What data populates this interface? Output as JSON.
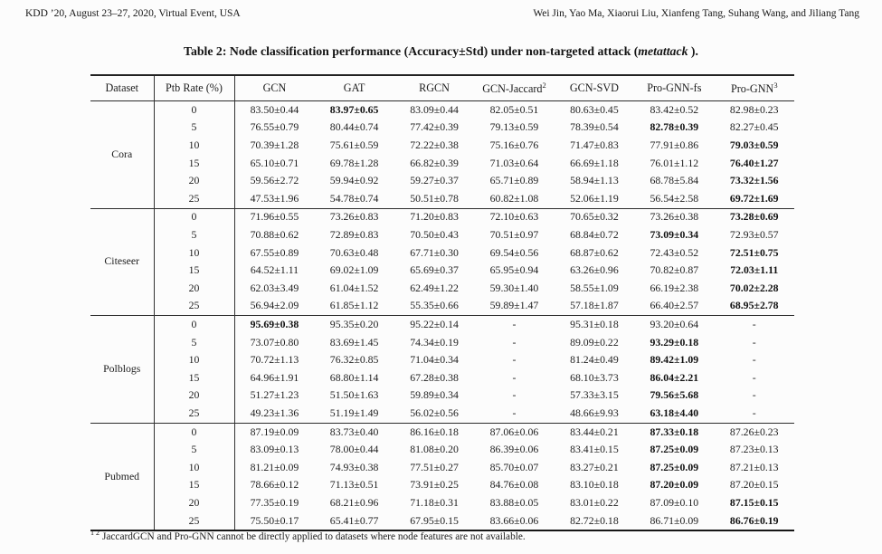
{
  "page_header": {
    "left": "KDD ’20, August 23–27, 2020, Virtual Event, USA",
    "right": "Wei Jin, Yao Ma, Xiaorui Liu, Xianfeng Tang, Suhang Wang, and Jiliang Tang"
  },
  "table": {
    "title_prefix": "Table 2: Node classification performance (Accuracy±Std) under non-targeted attack (",
    "title_emph": "metattack",
    "title_suffix": " ).",
    "columns": [
      {
        "label": "Dataset",
        "sup": ""
      },
      {
        "label": "Ptb Rate (%)",
        "sup": ""
      },
      {
        "label": "GCN",
        "sup": ""
      },
      {
        "label": "GAT",
        "sup": ""
      },
      {
        "label": "RGCN",
        "sup": ""
      },
      {
        "label": "GCN-Jaccard",
        "sup": "2"
      },
      {
        "label": "GCN-SVD",
        "sup": ""
      },
      {
        "label": "Pro-GNN-fs",
        "sup": ""
      },
      {
        "label": "Pro-GNN",
        "sup": "3"
      }
    ],
    "sections": [
      {
        "dataset": "Cora",
        "rows": [
          {
            "ptb": "0",
            "bold": 1,
            "values": [
              "83.50±0.44",
              "83.97±0.65",
              "83.09±0.44",
              "82.05±0.51",
              "80.63±0.45",
              "83.42±0.52",
              "82.98±0.23"
            ]
          },
          {
            "ptb": "5",
            "bold": 5,
            "values": [
              "76.55±0.79",
              "80.44±0.74",
              "77.42±0.39",
              "79.13±0.59",
              "78.39±0.54",
              "82.78±0.39",
              "82.27±0.45"
            ]
          },
          {
            "ptb": "10",
            "bold": 6,
            "values": [
              "70.39±1.28",
              "75.61±0.59",
              "72.22±0.38",
              "75.16±0.76",
              "71.47±0.83",
              "77.91±0.86",
              "79.03±0.59"
            ]
          },
          {
            "ptb": "15",
            "bold": 6,
            "values": [
              "65.10±0.71",
              "69.78±1.28",
              "66.82±0.39",
              "71.03±0.64",
              "66.69±1.18",
              "76.01±1.12",
              "76.40±1.27"
            ]
          },
          {
            "ptb": "20",
            "bold": 6,
            "values": [
              "59.56±2.72",
              "59.94±0.92",
              "59.27±0.37",
              "65.71±0.89",
              "58.94±1.13",
              "68.78±5.84",
              "73.32±1.56"
            ]
          },
          {
            "ptb": "25",
            "bold": 6,
            "values": [
              "47.53±1.96",
              "54.78±0.74",
              "50.51±0.78",
              "60.82±1.08",
              "52.06±1.19",
              "56.54±2.58",
              "69.72±1.69"
            ]
          }
        ]
      },
      {
        "dataset": "Citeseer",
        "rows": [
          {
            "ptb": "0",
            "bold": 6,
            "values": [
              "71.96±0.55",
              "73.26±0.83",
              "71.20±0.83",
              "72.10±0.63",
              "70.65±0.32",
              "73.26±0.38",
              "73.28±0.69"
            ]
          },
          {
            "ptb": "5",
            "bold": 5,
            "values": [
              "70.88±0.62",
              "72.89±0.83",
              "70.50±0.43",
              "70.51±0.97",
              "68.84±0.72",
              "73.09±0.34",
              "72.93±0.57"
            ]
          },
          {
            "ptb": "10",
            "bold": 6,
            "values": [
              "67.55±0.89",
              "70.63±0.48",
              "67.71±0.30",
              "69.54±0.56",
              "68.87±0.62",
              "72.43±0.52",
              "72.51±0.75"
            ]
          },
          {
            "ptb": "15",
            "bold": 6,
            "values": [
              "64.52±1.11",
              "69.02±1.09",
              "65.69±0.37",
              "65.95±0.94",
              "63.26±0.96",
              "70.82±0.87",
              "72.03±1.11"
            ]
          },
          {
            "ptb": "20",
            "bold": 6,
            "values": [
              "62.03±3.49",
              "61.04±1.52",
              "62.49±1.22",
              "59.30±1.40",
              "58.55±1.09",
              "66.19±2.38",
              "70.02±2.28"
            ]
          },
          {
            "ptb": "25",
            "bold": 6,
            "values": [
              "56.94±2.09",
              "61.85±1.12",
              "55.35±0.66",
              "59.89±1.47",
              "57.18±1.87",
              "66.40±2.57",
              "68.95±2.78"
            ]
          }
        ]
      },
      {
        "dataset": "Polblogs",
        "rows": [
          {
            "ptb": "0",
            "bold": 0,
            "values": [
              "95.69±0.38",
              "95.35±0.20",
              "95.22±0.14",
              "-",
              "95.31±0.18",
              "93.20±0.64",
              "-"
            ]
          },
          {
            "ptb": "5",
            "bold": 5,
            "values": [
              "73.07±0.80",
              "83.69±1.45",
              "74.34±0.19",
              "-",
              "89.09±0.22",
              "93.29±0.18",
              "-"
            ]
          },
          {
            "ptb": "10",
            "bold": 5,
            "values": [
              "70.72±1.13",
              "76.32±0.85",
              "71.04±0.34",
              "-",
              "81.24±0.49",
              "89.42±1.09",
              "-"
            ]
          },
          {
            "ptb": "15",
            "bold": 5,
            "values": [
              "64.96±1.91",
              "68.80±1.14",
              "67.28±0.38",
              "-",
              "68.10±3.73",
              "86.04±2.21",
              "-"
            ]
          },
          {
            "ptb": "20",
            "bold": 5,
            "values": [
              "51.27±1.23",
              "51.50±1.63",
              "59.89±0.34",
              "-",
              "57.33±3.15",
              "79.56±5.68",
              "-"
            ]
          },
          {
            "ptb": "25",
            "bold": 5,
            "values": [
              "49.23±1.36",
              "51.19±1.49",
              "56.02±0.56",
              "-",
              "48.66±9.93",
              "63.18±4.40",
              "-"
            ]
          }
        ]
      },
      {
        "dataset": "Pubmed",
        "rows": [
          {
            "ptb": "0",
            "bold": 5,
            "values": [
              "87.19±0.09",
              "83.73±0.40",
              "86.16±0.18",
              "87.06±0.06",
              "83.44±0.21",
              "87.33±0.18",
              "87.26±0.23"
            ]
          },
          {
            "ptb": "5",
            "bold": 5,
            "values": [
              "83.09±0.13",
              "78.00±0.44",
              "81.08±0.20",
              "86.39±0.06",
              "83.41±0.15",
              "87.25±0.09",
              "87.23±0.13"
            ]
          },
          {
            "ptb": "10",
            "bold": 5,
            "values": [
              "81.21±0.09",
              "74.93±0.38",
              "77.51±0.27",
              "85.70±0.07",
              "83.27±0.21",
              "87.25±0.09",
              "87.21±0.13"
            ]
          },
          {
            "ptb": "15",
            "bold": 5,
            "values": [
              "78.66±0.12",
              "71.13±0.51",
              "73.91±0.25",
              "84.76±0.08",
              "83.10±0.18",
              "87.20±0.09",
              "87.20±0.15"
            ]
          },
          {
            "ptb": "20",
            "bold": 6,
            "values": [
              "77.35±0.19",
              "68.21±0.96",
              "71.18±0.31",
              "83.88±0.05",
              "83.01±0.22",
              "87.09±0.10",
              "87.15±0.15"
            ]
          },
          {
            "ptb": "25",
            "bold": 6,
            "values": [
              "75.50±0.17",
              "65.41±0.77",
              "67.95±0.15",
              "83.66±0.06",
              "82.72±0.18",
              "86.71±0.09",
              "86.76±0.19"
            ]
          }
        ]
      }
    ],
    "footnote_sup": "1 2",
    "footnote_text": "JaccardGCN and Pro-GNN cannot be directly applied to datasets where node features are not available."
  }
}
